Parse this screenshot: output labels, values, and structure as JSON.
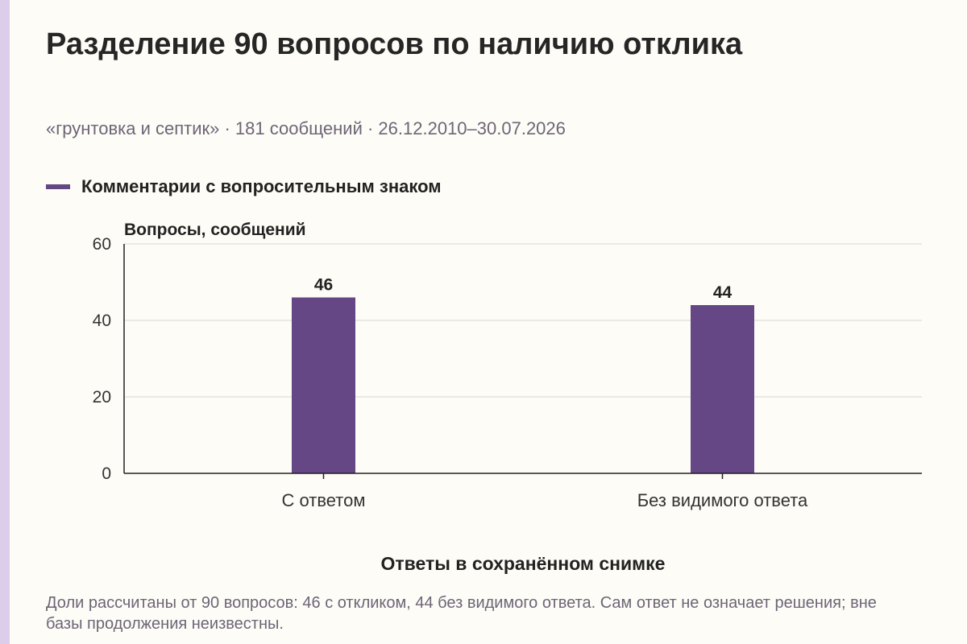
{
  "colors": {
    "background": "#fdfcf6",
    "accent_strip": "#dccdeb",
    "bar": "#654786",
    "grid": "#d6d6d6",
    "axis": "#222222",
    "muted_text": "#6e6577"
  },
  "header": {
    "title": "Разделение 90 вопросов по наличию отклика",
    "subtitle": "«грунтовка и септик» · 181 сообщений · 26.12.2010–30.07.2026"
  },
  "legend": {
    "label": "Комментарии с вопросительным знаком"
  },
  "chart_data": {
    "type": "bar",
    "categories": [
      "С ответом",
      "Без видимого ответа"
    ],
    "series": [
      {
        "name": "Комментарии с вопросительным знаком",
        "values": [
          46,
          44
        ]
      }
    ],
    "data_labels": [
      "46",
      "44"
    ],
    "ylabel": "Вопросы, сообщений",
    "xlabel": "Ответы в сохранённом снимке",
    "ylim": [
      0,
      60
    ],
    "yticks": [
      0,
      20,
      40,
      60
    ],
    "ytick_labels": [
      "0",
      "20",
      "40",
      "60"
    ],
    "grid": true,
    "legend_position": "top-left"
  },
  "footer": {
    "note": "Доли рассчитаны от 90 вопросов: 46 с откликом, 44 без видимого ответа. Сам ответ не означает решения; вне базы продолжения неизвестны."
  }
}
